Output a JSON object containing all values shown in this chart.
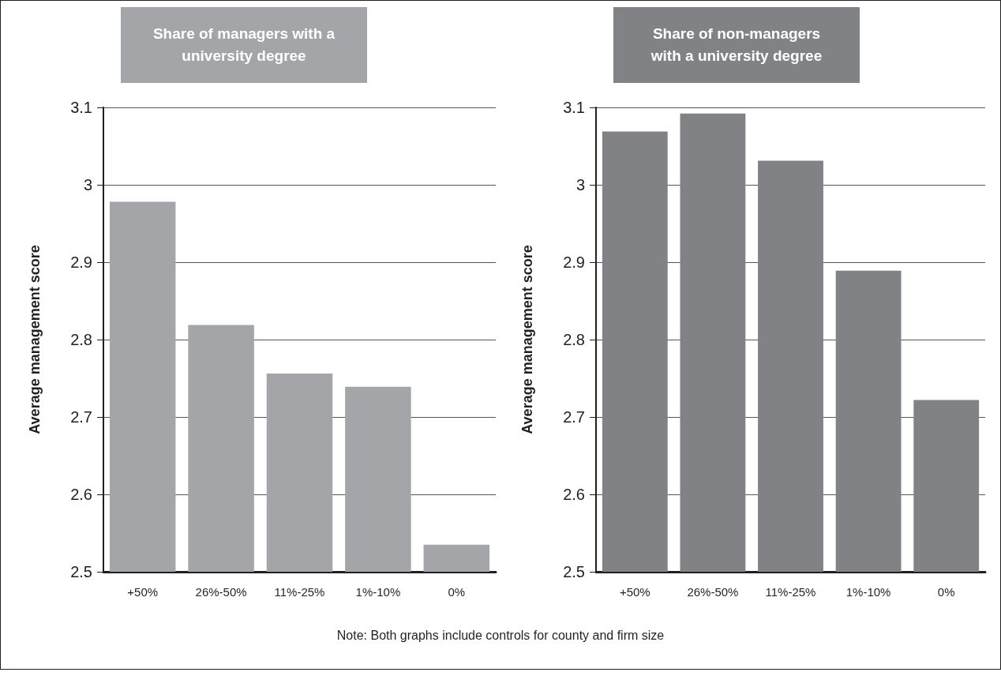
{
  "chart_data": [
    {
      "type": "bar",
      "title": "Share of managers with a university degree",
      "ylabel": "Average management score",
      "categories": [
        "+50%",
        "26%-50%",
        "11%-25%",
        "1%-10%",
        "0%"
      ],
      "values": [
        2.978,
        2.819,
        2.756,
        2.739,
        2.535
      ],
      "color": "#a4a5a9",
      "ylim": [
        2.5,
        3.1
      ],
      "yticks": [
        2.5,
        2.6,
        2.7,
        2.8,
        2.9,
        3,
        3.1
      ],
      "grid": "y"
    },
    {
      "type": "bar",
      "title": "Share of non-managers with a university degree",
      "ylabel": "Average management score",
      "categories": [
        "+50%",
        "26%-50%",
        "11%-25%",
        "1%-10%",
        "0%"
      ],
      "values": [
        3.069,
        3.092,
        3.031,
        2.889,
        2.722
      ],
      "color": "#818286",
      "ylim": [
        2.5,
        3.1
      ],
      "yticks": [
        2.5,
        2.6,
        2.7,
        2.8,
        2.9,
        3,
        3.1
      ],
      "grid": "y",
      "annotations": [
        "Note: Both graphs include controls for county and firm size"
      ]
    }
  ]
}
